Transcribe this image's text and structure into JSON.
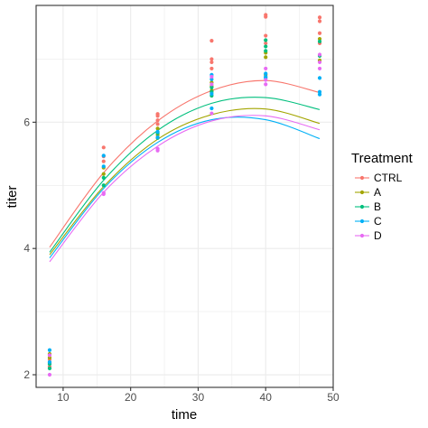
{
  "chart_data": {
    "type": "scatter",
    "xlabel": "time",
    "ylabel": "titer",
    "xlim": [
      6.0,
      50.0
    ],
    "ylim": [
      1.8,
      7.85
    ],
    "xticks": [
      10,
      20,
      30,
      40,
      50
    ],
    "yticks": [
      2,
      4,
      6
    ],
    "xminor": [
      15,
      25,
      35,
      45
    ],
    "yminor": [
      3,
      5,
      7
    ],
    "grid": true,
    "legend": {
      "title": "Treatment",
      "placement": "right",
      "entries": [
        "CTRL",
        "A",
        "B",
        "C",
        "D"
      ]
    },
    "series": [
      {
        "name": "CTRL",
        "color": "#F8766D",
        "points": [
          [
            8,
            2.19
          ],
          [
            8,
            2.13
          ],
          [
            8,
            2.24
          ],
          [
            16,
            5.6
          ],
          [
            16,
            5.46
          ],
          [
            16,
            5.38
          ],
          [
            24,
            6.13
          ],
          [
            24,
            6.1
          ],
          [
            24,
            6.03
          ],
          [
            24,
            5.97
          ],
          [
            32,
            7.29
          ],
          [
            32,
            7.0
          ],
          [
            32,
            6.95
          ],
          [
            32,
            6.85
          ],
          [
            40,
            7.7
          ],
          [
            40,
            7.67
          ],
          [
            40,
            7.37
          ],
          [
            40,
            7.25
          ],
          [
            48,
            7.66
          ],
          [
            48,
            7.6
          ],
          [
            48,
            7.41
          ],
          [
            48,
            7.25
          ]
        ],
        "curve": [
          [
            8,
            4.02
          ],
          [
            16,
            5.2
          ],
          [
            24,
            6.02
          ],
          [
            32,
            6.5
          ],
          [
            40,
            6.66
          ],
          [
            48,
            6.47
          ]
        ]
      },
      {
        "name": "A",
        "color": "#A3A500",
        "points": [
          [
            8,
            2.33
          ],
          [
            8,
            2.27
          ],
          [
            16,
            5.28
          ],
          [
            16,
            5.18
          ],
          [
            24,
            5.9
          ],
          [
            24,
            5.8
          ],
          [
            32,
            6.63
          ],
          [
            32,
            6.57
          ],
          [
            32,
            6.5
          ],
          [
            40,
            7.1
          ],
          [
            40,
            7.03
          ],
          [
            40,
            6.75
          ],
          [
            48,
            7.32
          ],
          [
            48,
            6.98
          ]
        ],
        "curve": [
          [
            8,
            3.9
          ],
          [
            16,
            4.98
          ],
          [
            24,
            5.73
          ],
          [
            32,
            6.12
          ],
          [
            40,
            6.21
          ],
          [
            48,
            5.98
          ]
        ]
      },
      {
        "name": "B",
        "color": "#00BF7D",
        "points": [
          [
            8,
            2.17
          ],
          [
            8,
            2.1
          ],
          [
            16,
            5.12
          ],
          [
            16,
            5.0
          ],
          [
            24,
            5.83
          ],
          [
            24,
            5.75
          ],
          [
            32,
            6.55
          ],
          [
            32,
            6.48
          ],
          [
            32,
            6.42
          ],
          [
            40,
            7.3
          ],
          [
            40,
            7.2
          ],
          [
            40,
            7.13
          ],
          [
            48,
            7.28
          ],
          [
            48,
            7.05
          ]
        ],
        "curve": [
          [
            8,
            3.94
          ],
          [
            16,
            5.08
          ],
          [
            24,
            5.87
          ],
          [
            32,
            6.3
          ],
          [
            40,
            6.39
          ],
          [
            48,
            6.2
          ]
        ]
      },
      {
        "name": "C",
        "color": "#00B0F6",
        "points": [
          [
            8,
            2.39
          ],
          [
            8,
            2.2
          ],
          [
            16,
            5.47
          ],
          [
            16,
            5.3
          ],
          [
            24,
            5.85
          ],
          [
            24,
            5.76
          ],
          [
            32,
            6.75
          ],
          [
            32,
            6.68
          ],
          [
            32,
            6.45
          ],
          [
            32,
            6.22
          ],
          [
            40,
            6.77
          ],
          [
            40,
            6.72
          ],
          [
            40,
            6.7
          ],
          [
            48,
            6.7
          ],
          [
            48,
            6.48
          ],
          [
            48,
            6.44
          ]
        ],
        "curve": [
          [
            8,
            3.85
          ],
          [
            16,
            4.95
          ],
          [
            24,
            5.68
          ],
          [
            32,
            6.04
          ],
          [
            40,
            6.04
          ],
          [
            48,
            5.74
          ]
        ]
      },
      {
        "name": "D",
        "color": "#E76BF3",
        "points": [
          [
            8,
            2.0
          ],
          [
            8,
            2.31
          ],
          [
            16,
            4.88
          ],
          [
            16,
            4.86
          ],
          [
            24,
            5.58
          ],
          [
            24,
            5.55
          ],
          [
            32,
            6.72
          ],
          [
            32,
            6.6
          ],
          [
            32,
            6.14
          ],
          [
            40,
            6.85
          ],
          [
            40,
            6.67
          ],
          [
            40,
            6.6
          ],
          [
            48,
            7.07
          ],
          [
            48,
            6.95
          ],
          [
            48,
            6.85
          ]
        ],
        "curve": [
          [
            8,
            3.79
          ],
          [
            16,
            4.89
          ],
          [
            24,
            5.62
          ],
          [
            32,
            6.02
          ],
          [
            40,
            6.1
          ],
          [
            48,
            5.88
          ]
        ]
      }
    ]
  }
}
